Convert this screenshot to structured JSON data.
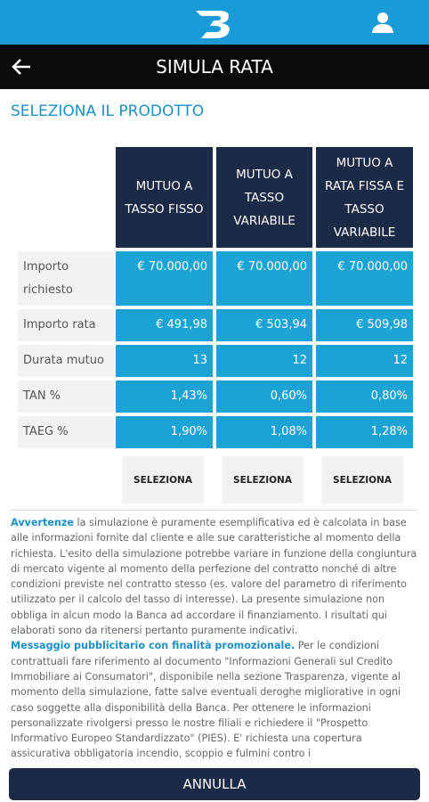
{
  "header": {
    "title": "SIMULA RATA"
  },
  "section_title": "SELEZIONA IL PRODOTTO",
  "table": {
    "columns": [
      "MUTUO A TASSO FISSO",
      "MUTUO A TASSO VARIABILE",
      "MUTUO A RATA FISSA E TASSO VARIABILE"
    ],
    "rows": [
      {
        "label": "Importo richiesto",
        "values": [
          "€ 70.000,00",
          "€ 70.000,00",
          "€ 70.000,00"
        ]
      },
      {
        "label": "Importo rata",
        "values": [
          "€ 491,98",
          "€ 503,94",
          "€ 509,98"
        ]
      },
      {
        "label": "Durata mutuo",
        "values": [
          "13",
          "12",
          "12"
        ]
      },
      {
        "label": "TAN %",
        "values": [
          "1,43%",
          "0,60%",
          "0,80%"
        ]
      },
      {
        "label": "TAEG %",
        "values": [
          "1,90%",
          "1,08%",
          "1,28%"
        ]
      }
    ],
    "buttons": [
      "SELEZIONA",
      "SELEZIONA",
      "SELEZIONA"
    ]
  },
  "disclaimer": [
    {
      "lead": "Avvertenze",
      "body": "la simulazione è puramente esemplificativa ed è calcolata in base alle informazioni fornite dal cliente e alle sue caratteristiche al momento della richiesta. L'esito della simulazione potrebbe variare in funzione della congiuntura di mercato vigente al momento della perfezione del contratto nonché di altre condizioni previste nel contratto stesso (es. valore del parametro di riferimento utilizzato per il calcolo del tasso di interesse). La presente simulazione non obbliga in alcun modo la Banca ad accordare il finanziamento. I risultati qui elaborati sono da ritenersi pertanto puramente indicativi."
    },
    {
      "lead": "Messaggio pubblicitario con finalità promozionale.",
      "body": "Per le condizioni contrattuali fare riferimento al documento \"Informazioni Generali sul Credito Immobiliare ai Consumatori\", disponibile nella sezione Trasparenza, vigente al momento della simulazione, fatte salve eventuali deroghe migliorative in ogni caso soggette alla disponibilità della Banca. Per ottenere le informazioni personalizzate rivolgersi presso le nostre filiali e richiedere il \"Prospetto Informativo Europeo Standardizzato\" (PIES). E' richiesta una copertura assicurativa obbligatoria incendio, scoppio e fulmini contro i"
    }
  ],
  "cancel_button": "ANNULLA"
}
